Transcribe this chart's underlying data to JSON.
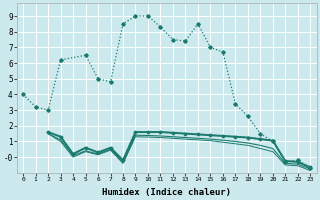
{
  "xlabel": "Humidex (Indice chaleur)",
  "bg_color": "#cce9ed",
  "grid_color": "#b8d8dc",
  "line_color": "#1a7a6e",
  "xlim": [
    -0.5,
    23.5
  ],
  "ylim": [
    -1.0,
    9.8
  ],
  "xticks": [
    0,
    1,
    2,
    3,
    4,
    5,
    6,
    7,
    8,
    9,
    10,
    11,
    12,
    13,
    14,
    15,
    16,
    17,
    18,
    19,
    20,
    21,
    22,
    23
  ],
  "yticks": [
    0,
    1,
    2,
    3,
    4,
    5,
    6,
    7,
    8,
    9
  ],
  "ytick_labels": [
    "-0",
    "1",
    "2",
    "3",
    "4",
    "5",
    "6",
    "7",
    "8",
    "9"
  ],
  "curve1_x": [
    0,
    1,
    2,
    3,
    5,
    6,
    7,
    8,
    9,
    10,
    11,
    12,
    13,
    14,
    15,
    16,
    17,
    18,
    19,
    20,
    21,
    22,
    23
  ],
  "curve1_y": [
    4.0,
    3.2,
    3.0,
    6.2,
    6.5,
    5.0,
    4.8,
    8.5,
    9.0,
    9.0,
    8.3,
    7.5,
    7.4,
    8.5,
    7.0,
    6.7,
    3.4,
    2.6,
    1.5,
    1.0,
    -0.3,
    -0.2,
    -0.7
  ],
  "curve2_x": [
    2,
    3,
    4,
    5,
    6,
    7,
    8,
    9,
    10,
    11,
    12,
    13,
    14,
    15,
    16,
    17,
    18,
    19,
    20,
    21,
    22,
    23
  ],
  "curve2_y": [
    1.6,
    1.3,
    0.2,
    0.6,
    0.3,
    0.6,
    -0.2,
    1.6,
    1.6,
    1.6,
    1.55,
    1.5,
    1.45,
    1.4,
    1.35,
    1.3,
    1.25,
    1.15,
    1.05,
    -0.25,
    -0.3,
    -0.65
  ],
  "curve3_x": [
    2,
    3,
    4,
    5,
    6,
    7,
    8,
    9,
    10,
    11,
    12,
    13,
    14,
    15,
    16,
    17,
    18,
    19,
    20,
    21,
    22,
    23
  ],
  "curve3_y": [
    1.6,
    1.3,
    0.2,
    0.6,
    0.3,
    0.6,
    -0.2,
    1.6,
    1.6,
    1.6,
    1.55,
    1.5,
    1.45,
    1.4,
    1.35,
    1.3,
    1.25,
    1.15,
    1.05,
    -0.25,
    -0.3,
    -0.65
  ],
  "curve4_x": [
    2,
    3,
    4,
    5,
    6,
    7,
    8,
    9,
    10,
    11,
    12,
    13,
    14,
    15,
    16,
    17,
    18,
    19,
    20,
    21,
    22,
    23
  ],
  "curve4_y": [
    1.5,
    1.1,
    0.1,
    0.4,
    0.2,
    0.5,
    -0.35,
    1.4,
    1.38,
    1.35,
    1.3,
    1.25,
    1.2,
    1.15,
    1.08,
    1.0,
    0.9,
    0.75,
    0.55,
    -0.4,
    -0.45,
    -0.75
  ],
  "curve5_x": [
    2,
    3,
    4,
    5,
    6,
    7,
    8,
    9,
    10,
    11,
    12,
    13,
    14,
    15,
    16,
    17,
    18,
    19,
    20,
    21,
    22,
    23
  ],
  "curve5_y": [
    1.5,
    1.0,
    0.0,
    0.35,
    0.15,
    0.45,
    -0.4,
    1.3,
    1.28,
    1.25,
    1.2,
    1.15,
    1.1,
    1.05,
    0.95,
    0.85,
    0.75,
    0.55,
    0.35,
    -0.5,
    -0.55,
    -0.85
  ]
}
